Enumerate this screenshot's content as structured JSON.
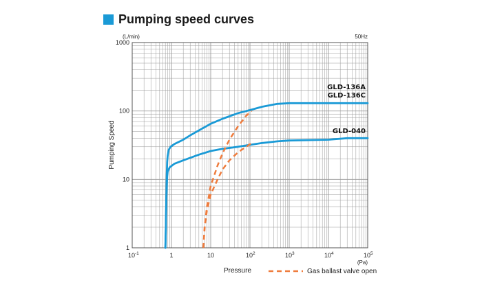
{
  "title": "Pumping speed curves",
  "colors": {
    "accent": "#1a9ad6",
    "gas_ballast": "#ef7c3d",
    "grid": "#999999"
  },
  "chart_data": {
    "type": "line",
    "ylabel": "Pumping Speed",
    "yunit": "(L/min)",
    "xlabel": "Pressure",
    "xunit": "(Pa)",
    "frequency": "50Hz",
    "x_scale": "log",
    "y_scale": "log",
    "xlim": [
      0.1,
      100000
    ],
    "ylim": [
      1,
      1000
    ],
    "grid": true,
    "x_ticks": [
      {
        "value": 0.1,
        "base": "10",
        "exp": "-1"
      },
      {
        "value": 1,
        "base": "1",
        "exp": ""
      },
      {
        "value": 10,
        "base": "10",
        "exp": ""
      },
      {
        "value": 100,
        "base": "10",
        "exp": "2"
      },
      {
        "value": 1000,
        "base": "10",
        "exp": "3"
      },
      {
        "value": 10000,
        "base": "10",
        "exp": "4"
      },
      {
        "value": 100000,
        "base": "10",
        "exp": "5"
      }
    ],
    "y_ticks": [
      {
        "value": 1,
        "label": "1"
      },
      {
        "value": 10,
        "label": "10"
      },
      {
        "value": 100,
        "label": "100"
      },
      {
        "value": 1000,
        "label": "1000"
      }
    ],
    "series": [
      {
        "style": "solid",
        "color": "#1a9ad6",
        "labels": [
          "GLD-136A",
          "GLD-136C"
        ],
        "points": [
          [
            0.7,
            1
          ],
          [
            0.72,
            2
          ],
          [
            0.74,
            5
          ],
          [
            0.76,
            12
          ],
          [
            0.78,
            18
          ],
          [
            0.8,
            22
          ],
          [
            0.85,
            27
          ],
          [
            0.95,
            30
          ],
          [
            1.2,
            33
          ],
          [
            2,
            38
          ],
          [
            3,
            44
          ],
          [
            5,
            52
          ],
          [
            10,
            65
          ],
          [
            20,
            77
          ],
          [
            50,
            93
          ],
          [
            100,
            103
          ],
          [
            200,
            115
          ],
          [
            500,
            127
          ],
          [
            1000,
            130
          ],
          [
            10000,
            130
          ],
          [
            100000,
            130
          ]
        ]
      },
      {
        "style": "solid",
        "color": "#1a9ad6",
        "labels": [
          "GLD-040"
        ],
        "points": [
          [
            0.7,
            1
          ],
          [
            0.72,
            2
          ],
          [
            0.74,
            5
          ],
          [
            0.76,
            8
          ],
          [
            0.78,
            11
          ],
          [
            0.8,
            13
          ],
          [
            0.9,
            15
          ],
          [
            1.2,
            17
          ],
          [
            2,
            19
          ],
          [
            5,
            23
          ],
          [
            10,
            26
          ],
          [
            20,
            28
          ],
          [
            50,
            30
          ],
          [
            100,
            32
          ],
          [
            200,
            34
          ],
          [
            500,
            36
          ],
          [
            1000,
            37
          ],
          [
            10000,
            38
          ],
          [
            30000,
            40
          ],
          [
            100000,
            40
          ]
        ]
      },
      {
        "name": "Gas ballast valve open",
        "style": "dashed",
        "color": "#ef7c3d",
        "points": [
          [
            6.5,
            1
          ],
          [
            7,
            2
          ],
          [
            8,
            4
          ],
          [
            10,
            8
          ],
          [
            15,
            16
          ],
          [
            20,
            24
          ],
          [
            30,
            38
          ],
          [
            50,
            60
          ],
          [
            80,
            85
          ],
          [
            110,
            100
          ]
        ]
      },
      {
        "name": "Gas ballast valve open",
        "style": "dashed",
        "color": "#ef7c3d",
        "points": [
          [
            6.5,
            1
          ],
          [
            7,
            2
          ],
          [
            8,
            3.5
          ],
          [
            10,
            6
          ],
          [
            15,
            10
          ],
          [
            20,
            14
          ],
          [
            30,
            19
          ],
          [
            50,
            25
          ],
          [
            80,
            30
          ],
          [
            110,
            34
          ]
        ]
      }
    ],
    "legend": {
      "label": "Gas ballast valve open",
      "placement": "bottom-right"
    }
  }
}
